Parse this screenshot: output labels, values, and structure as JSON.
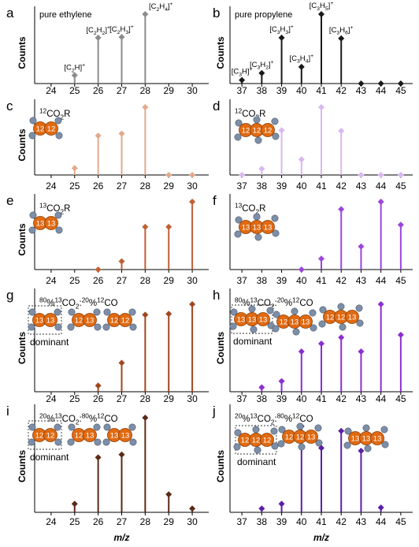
{
  "colors": {
    "eth_std": "#8c8c8c",
    "pro_std": "#1a1a1a",
    "c": "#e3a98c",
    "d": "#d9b8ef",
    "e": "#c25f34",
    "f": "#9b45dd",
    "g": "#a1471f",
    "h": "#8a2fd0",
    "i": "#5b2a17",
    "j": "#5b1fa8",
    "mol_orange": "#e06a12",
    "mol_h": "#7d8fa8"
  },
  "shared_axis_label": "m/z",
  "chart_data": [
    {
      "type": "bar",
      "panel": "a",
      "label": "a",
      "title": "pure ethylene",
      "xlabel": "",
      "ylabel": "Counts",
      "x": [
        24,
        25,
        26,
        27,
        28,
        29,
        30
      ],
      "xlim": [
        23.3,
        30.7
      ],
      "ylim": [
        0,
        1
      ],
      "points": [
        {
          "x": 25,
          "y": 0.12,
          "label": "[C2H]+"
        },
        {
          "x": 26,
          "y": 0.66,
          "label": "[C2H2]+"
        },
        {
          "x": 27,
          "y": 0.67,
          "label": "[C2H3]+"
        },
        {
          "x": 28,
          "y": 1.0,
          "label": "[C2H4]+"
        }
      ],
      "annotations": []
    },
    {
      "type": "bar",
      "panel": "b",
      "label": "b",
      "title": "pure propylene",
      "xlabel": "",
      "ylabel": "Counts",
      "x": [
        37,
        38,
        39,
        40,
        41,
        42,
        43,
        44,
        45
      ],
      "xlim": [
        36.4,
        45.6
      ],
      "ylim": [
        0,
        1
      ],
      "points": [
        {
          "x": 37,
          "y": 0.05,
          "label": "[C3H]+"
        },
        {
          "x": 38,
          "y": 0.15,
          "label": "[C3H2]+"
        },
        {
          "x": 39,
          "y": 0.66,
          "label": "[C3H3]+"
        },
        {
          "x": 40,
          "y": 0.24,
          "label": "[C3H4]+"
        },
        {
          "x": 41,
          "y": 1.0,
          "label": "[C3H5]+"
        },
        {
          "x": 42,
          "y": 0.65,
          "label": "[C3H6]+"
        },
        {
          "x": 43,
          "y": 0.0
        },
        {
          "x": 44,
          "y": 0.0
        },
        {
          "x": 45,
          "y": 0.0
        }
      ],
      "annotations": []
    },
    {
      "type": "bar",
      "panel": "c",
      "label": "c",
      "title": "12CO2R",
      "xlabel": "",
      "ylabel": "Counts",
      "x": [
        24,
        25,
        26,
        27,
        28,
        29,
        30
      ],
      "xlim": [
        23.3,
        30.7
      ],
      "ylim": [
        0,
        1
      ],
      "points": [
        {
          "x": 25,
          "y": 0.1
        },
        {
          "x": 26,
          "y": 0.58
        },
        {
          "x": 27,
          "y": 0.61
        },
        {
          "x": 28,
          "y": 1.0
        },
        {
          "x": 29,
          "y": 0.0
        },
        {
          "x": 30,
          "y": 0.0
        }
      ],
      "annotations": []
    },
    {
      "type": "bar",
      "panel": "d",
      "label": "d",
      "title": "12CO2R",
      "xlabel": "",
      "ylabel": "",
      "x": [
        37,
        38,
        39,
        40,
        41,
        42,
        43,
        44,
        45
      ],
      "xlim": [
        36.4,
        45.6
      ],
      "ylim": [
        0,
        1
      ],
      "points": [
        {
          "x": 37,
          "y": 0.0
        },
        {
          "x": 38,
          "y": 0.09
        },
        {
          "x": 39,
          "y": 0.66
        },
        {
          "x": 40,
          "y": 0.23
        },
        {
          "x": 41,
          "y": 1.0
        },
        {
          "x": 42,
          "y": 0.65
        },
        {
          "x": 43,
          "y": 0.0
        },
        {
          "x": 44,
          "y": 0.0
        },
        {
          "x": 45,
          "y": 0.0
        }
      ],
      "annotations": []
    },
    {
      "type": "bar",
      "panel": "e",
      "label": "e",
      "title": "13CO2R",
      "xlabel": "",
      "ylabel": "Counts",
      "x": [
        24,
        25,
        26,
        27,
        28,
        29,
        30
      ],
      "xlim": [
        23.3,
        30.7
      ],
      "ylim": [
        0,
        1
      ],
      "points": [
        {
          "x": 26,
          "y": 0.0
        },
        {
          "x": 27,
          "y": 0.12
        },
        {
          "x": 28,
          "y": 0.63
        },
        {
          "x": 29,
          "y": 0.63
        },
        {
          "x": 30,
          "y": 1.0
        }
      ],
      "annotations": []
    },
    {
      "type": "bar",
      "panel": "f",
      "label": "f",
      "title": "13CO2R",
      "xlabel": "",
      "ylabel": "",
      "x": [
        37,
        38,
        39,
        40,
        41,
        42,
        43,
        44,
        45
      ],
      "xlim": [
        36.4,
        45.6
      ],
      "ylim": [
        0,
        1
      ],
      "points": [
        {
          "x": 40,
          "y": 0.0
        },
        {
          "x": 41,
          "y": 0.16
        },
        {
          "x": 42,
          "y": 0.89
        },
        {
          "x": 43,
          "y": 0.34
        },
        {
          "x": 44,
          "y": 1.0
        },
        {
          "x": 45,
          "y": 0.66
        }
      ],
      "annotations": []
    },
    {
      "type": "bar",
      "panel": "g",
      "label": "g",
      "title": "80%13CO2:20%12CO",
      "xlabel": "",
      "ylabel": "Counts",
      "x": [
        24,
        25,
        26,
        27,
        28,
        29,
        30
      ],
      "xlim": [
        23.3,
        30.7
      ],
      "ylim": [
        0,
        1
      ],
      "points": [
        {
          "x": 26,
          "y": 0.07
        },
        {
          "x": 27,
          "y": 0.33
        },
        {
          "x": 28,
          "y": 0.88
        },
        {
          "x": 29,
          "y": 0.89
        },
        {
          "x": 30,
          "y": 1.0
        }
      ],
      "annotations": [
        "dominant"
      ]
    },
    {
      "type": "bar",
      "panel": "h",
      "label": "h",
      "title": "80%13CO2:20%12CO",
      "xlabel": "",
      "ylabel": "Counts",
      "x": [
        37,
        38,
        39,
        40,
        41,
        42,
        43,
        44,
        45
      ],
      "xlim": [
        36.4,
        45.6
      ],
      "ylim": [
        0,
        1
      ],
      "points": [
        {
          "x": 38,
          "y": 0.05
        },
        {
          "x": 39,
          "y": 0.12
        },
        {
          "x": 40,
          "y": 0.46
        },
        {
          "x": 41,
          "y": 0.55
        },
        {
          "x": 42,
          "y": 0.62
        },
        {
          "x": 43,
          "y": 0.46
        },
        {
          "x": 44,
          "y": 1.0
        },
        {
          "x": 45,
          "y": 0.65
        }
      ],
      "annotations": [
        "dominant"
      ]
    },
    {
      "type": "bar",
      "panel": "i",
      "label": "i",
      "title": "20%13CO2:80%12CO",
      "xlabel": "m/z",
      "ylabel": "Counts",
      "x": [
        24,
        25,
        26,
        27,
        28,
        29,
        30
      ],
      "xlim": [
        23.3,
        30.7
      ],
      "ylim": [
        0,
        1
      ],
      "points": [
        {
          "x": 25,
          "y": 0.09
        },
        {
          "x": 26,
          "y": 0.58
        },
        {
          "x": 27,
          "y": 0.61
        },
        {
          "x": 28,
          "y": 1.0
        },
        {
          "x": 29,
          "y": 0.19
        },
        {
          "x": 30,
          "y": 0.04
        }
      ],
      "annotations": [
        "dominant"
      ]
    },
    {
      "type": "bar",
      "panel": "j",
      "label": "j",
      "title": "20%13CO2:80%12CO",
      "xlabel": "m/z",
      "ylabel": "Counts",
      "x": [
        37,
        38,
        39,
        40,
        41,
        42,
        43,
        44,
        45
      ],
      "xlim": [
        36.4,
        45.6
      ],
      "ylim": [
        0,
        1
      ],
      "points": [
        {
          "x": 38,
          "y": 0.04
        },
        {
          "x": 39,
          "y": 0.09
        },
        {
          "x": 40,
          "y": 0.91
        },
        {
          "x": 41,
          "y": 0.68
        },
        {
          "x": 42,
          "y": 0.86
        },
        {
          "x": 43,
          "y": 0.65
        },
        {
          "x": 44,
          "y": 0.05
        }
      ],
      "annotations": [
        "dominant"
      ]
    }
  ]
}
